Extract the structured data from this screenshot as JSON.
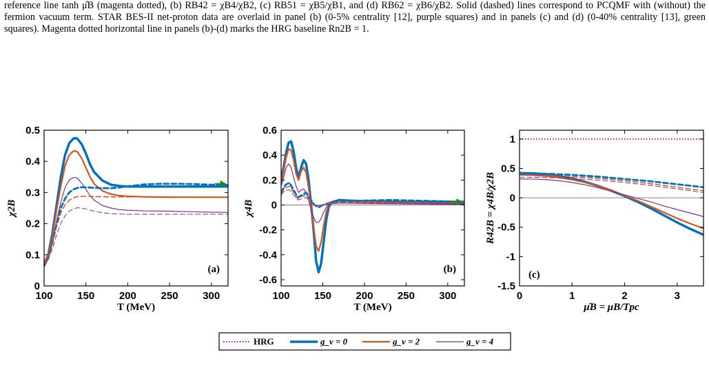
{
  "caption": {
    "text": "reference line tanh μ̂B (magenta dotted), (b) RB42 = χB4/χB2, (c) RB51 = χB5/χB1, and (d) RB62 = χB6/χB2. Solid (dashed) lines correspond to PCQMF with (without) the fermion vacuum term. STAR BES-II net-proton data are overlaid in panel (b) (0-5% centrality [12], purple squares) and in panels (c) and (d) (0-40% centrality [13], green squares). Magenta dotted horizontal line in panels (b)-(d) marks the HRG baseline Rn2B = 1."
  },
  "colors": {
    "blue": "#0072BD",
    "orange": "#D95319",
    "purple": "#7E2F8E",
    "magenta": "#CC0099",
    "green": "#1A8C1A",
    "gray": "#808080"
  },
  "legend": {
    "items": [
      {
        "label": "HRG",
        "color": "#CC0099",
        "style": "dotted",
        "width": 2
      },
      {
        "label": "g_v = 0",
        "color": "#0072BD",
        "style": "solid",
        "width": 3.5
      },
      {
        "label": "g_v = 2",
        "color": "#D95319",
        "style": "solid",
        "width": 2.2
      },
      {
        "label": "g_v = 4",
        "color": "#7E2F8E",
        "style": "solid",
        "width": 1.2
      }
    ]
  },
  "chart_data": [
    {
      "type": "line",
      "panel_label": "(a)",
      "xlabel": "T (MeV)",
      "ylabel": "χ2B",
      "xlim": [
        100,
        320
      ],
      "ylim": [
        0,
        0.5
      ],
      "xticks": [
        100,
        150,
        200,
        250,
        300
      ],
      "yticks": [
        0,
        0.1,
        0.2,
        0.3,
        0.4,
        0.5
      ],
      "ytick_labels": [
        "0",
        "0.1",
        "0.2",
        "0.3",
        "0.4",
        "0.5"
      ],
      "arrow": {
        "x_from": 304,
        "x_to": 318,
        "y": 0.328,
        "color": "green"
      },
      "series": [
        {
          "color": "blue",
          "width": 3.5,
          "dash": false,
          "x": [
            100,
            105,
            110,
            115,
            120,
            125,
            130,
            135,
            138,
            140,
            145,
            150,
            155,
            160,
            170,
            180,
            190,
            200,
            220,
            250,
            280,
            300,
            320
          ],
          "y": [
            0.07,
            0.1,
            0.17,
            0.26,
            0.35,
            0.42,
            0.458,
            0.473,
            0.475,
            0.472,
            0.455,
            0.425,
            0.39,
            0.365,
            0.338,
            0.325,
            0.321,
            0.319,
            0.319,
            0.319,
            0.319,
            0.319,
            0.319
          ]
        },
        {
          "color": "orange",
          "width": 2.2,
          "dash": false,
          "x": [
            100,
            105,
            110,
            115,
            120,
            125,
            130,
            135,
            138,
            140,
            145,
            150,
            155,
            160,
            170,
            180,
            190,
            200,
            220,
            250,
            280,
            300,
            320
          ],
          "y": [
            0.07,
            0.1,
            0.16,
            0.245,
            0.32,
            0.385,
            0.42,
            0.433,
            0.433,
            0.43,
            0.41,
            0.38,
            0.35,
            0.327,
            0.305,
            0.295,
            0.29,
            0.288,
            0.286,
            0.285,
            0.285,
            0.285,
            0.285
          ]
        },
        {
          "color": "purple",
          "width": 1.2,
          "dash": false,
          "x": [
            100,
            105,
            110,
            115,
            120,
            125,
            130,
            135,
            138,
            140,
            145,
            150,
            155,
            160,
            170,
            180,
            190,
            200,
            220,
            250,
            280,
            300,
            320
          ],
          "y": [
            0.06,
            0.09,
            0.14,
            0.21,
            0.27,
            0.315,
            0.34,
            0.348,
            0.348,
            0.345,
            0.33,
            0.31,
            0.29,
            0.275,
            0.258,
            0.25,
            0.245,
            0.243,
            0.241,
            0.24,
            0.238,
            0.237,
            0.236
          ]
        },
        {
          "color": "blue",
          "width": 2.8,
          "dash": true,
          "x": [
            100,
            105,
            110,
            115,
            120,
            125,
            130,
            135,
            140,
            145,
            150,
            155,
            160,
            170,
            180,
            190,
            200,
            220,
            240,
            260,
            280,
            300,
            320
          ],
          "y": [
            0.065,
            0.09,
            0.14,
            0.2,
            0.25,
            0.28,
            0.3,
            0.31,
            0.315,
            0.317,
            0.317,
            0.316,
            0.315,
            0.314,
            0.314,
            0.316,
            0.32,
            0.326,
            0.328,
            0.328,
            0.327,
            0.325,
            0.324
          ]
        },
        {
          "color": "orange",
          "width": 1.5,
          "dash": true,
          "x": [
            100,
            105,
            110,
            115,
            120,
            125,
            130,
            135,
            140,
            145,
            150,
            155,
            160,
            170,
            180,
            190,
            200,
            220,
            250,
            280,
            300,
            320
          ],
          "y": [
            0.065,
            0.09,
            0.135,
            0.19,
            0.235,
            0.26,
            0.275,
            0.283,
            0.287,
            0.288,
            0.288,
            0.288,
            0.287,
            0.286,
            0.286,
            0.286,
            0.286,
            0.286,
            0.286,
            0.285,
            0.285,
            0.285
          ]
        },
        {
          "color": "purple",
          "width": 1,
          "dash": true,
          "x": [
            100,
            105,
            110,
            115,
            120,
            125,
            130,
            135,
            140,
            145,
            150,
            155,
            160,
            170,
            180,
            190,
            200,
            220,
            250,
            280,
            300,
            320
          ],
          "y": [
            0.06,
            0.085,
            0.12,
            0.165,
            0.2,
            0.225,
            0.24,
            0.248,
            0.251,
            0.25,
            0.247,
            0.243,
            0.24,
            0.235,
            0.232,
            0.231,
            0.23,
            0.23,
            0.23,
            0.23,
            0.23,
            0.23
          ]
        }
      ]
    },
    {
      "type": "line",
      "panel_label": "(b)",
      "xlabel": "T (MeV)",
      "ylabel": "χ4B",
      "xlim": [
        100,
        320
      ],
      "ylim": [
        -0.65,
        0.6
      ],
      "xticks": [
        100,
        150,
        200,
        250,
        300
      ],
      "yticks": [
        -0.6,
        -0.4,
        -0.2,
        0,
        0.2,
        0.4,
        0.6
      ],
      "ytick_labels": [
        "-0.6",
        "-0.4",
        "-0.2",
        "0",
        "0.2",
        "0.4",
        "0.6"
      ],
      "zero_line": true,
      "arrow": {
        "x_from": 302,
        "x_to": 318,
        "y": 0.025,
        "color": "green"
      },
      "series": [
        {
          "color": "blue",
          "width": 3.5,
          "dash": false,
          "x": [
            100,
            103,
            106,
            109,
            112,
            115,
            118,
            121,
            124,
            127,
            130,
            133,
            136,
            139,
            142,
            145,
            148,
            151,
            154,
            157,
            160,
            170,
            180,
            200,
            230,
            260,
            290,
            320
          ],
          "y": [
            0.2,
            0.3,
            0.42,
            0.5,
            0.51,
            0.43,
            0.3,
            0.22,
            0.3,
            0.36,
            0.33,
            0.2,
            0.0,
            -0.2,
            -0.45,
            -0.54,
            -0.47,
            -0.3,
            -0.13,
            -0.02,
            0.02,
            0.04,
            0.035,
            0.03,
            0.025,
            0.025,
            0.025,
            0.025
          ]
        },
        {
          "color": "orange",
          "width": 2.2,
          "dash": false,
          "x": [
            100,
            103,
            106,
            109,
            112,
            115,
            118,
            121,
            124,
            127,
            130,
            133,
            136,
            139,
            142,
            145,
            148,
            151,
            154,
            157,
            160,
            170,
            180,
            200,
            230,
            260,
            290,
            320
          ],
          "y": [
            0.17,
            0.27,
            0.38,
            0.45,
            0.44,
            0.36,
            0.25,
            0.2,
            0.27,
            0.3,
            0.26,
            0.14,
            -0.02,
            -0.18,
            -0.33,
            -0.37,
            -0.3,
            -0.17,
            -0.06,
            0.0,
            0.02,
            0.03,
            0.03,
            0.025,
            0.02,
            0.015,
            0.01,
            0.01
          ]
        },
        {
          "color": "purple",
          "width": 1.2,
          "dash": false,
          "x": [
            100,
            103,
            106,
            109,
            112,
            115,
            118,
            121,
            124,
            127,
            130,
            133,
            136,
            139,
            142,
            145,
            148,
            151,
            154,
            157,
            160,
            170,
            180,
            200,
            230,
            260,
            290,
            320
          ],
          "y": [
            0.15,
            0.22,
            0.3,
            0.33,
            0.3,
            0.22,
            0.15,
            0.1,
            0.12,
            0.13,
            0.1,
            0.04,
            -0.04,
            -0.1,
            -0.14,
            -0.14,
            -0.11,
            -0.06,
            -0.02,
            0.0,
            0.01,
            0.015,
            0.015,
            0.012,
            0.01,
            0.008,
            0.006,
            0.005
          ]
        },
        {
          "color": "blue",
          "width": 2.8,
          "dash": true,
          "x": [
            100,
            105,
            110,
            115,
            120,
            125,
            130,
            135,
            140,
            145,
            150,
            160,
            170,
            180,
            200,
            230,
            260,
            290,
            320
          ],
          "y": [
            0.1,
            0.16,
            0.18,
            0.12,
            0.06,
            0.08,
            0.1,
            0.05,
            0.0,
            -0.02,
            0.0,
            0.02,
            0.03,
            0.03,
            0.035,
            0.04,
            0.035,
            0.03,
            0.025
          ]
        },
        {
          "color": "orange",
          "width": 1.5,
          "dash": true,
          "x": [
            100,
            105,
            110,
            115,
            120,
            125,
            130,
            135,
            140,
            145,
            150,
            160,
            170,
            180,
            200,
            230,
            260,
            290,
            320
          ],
          "y": [
            0.09,
            0.14,
            0.15,
            0.1,
            0.05,
            0.07,
            0.08,
            0.04,
            0.0,
            -0.01,
            0.0,
            0.015,
            0.02,
            0.02,
            0.02,
            0.02,
            0.02,
            0.015,
            0.015
          ]
        },
        {
          "color": "purple",
          "width": 1,
          "dash": true,
          "x": [
            100,
            105,
            110,
            115,
            120,
            125,
            130,
            135,
            140,
            145,
            150,
            160,
            170,
            180,
            200,
            230,
            260,
            290,
            320
          ],
          "y": [
            0.08,
            0.12,
            0.12,
            0.08,
            0.04,
            0.05,
            0.06,
            0.03,
            0.0,
            -0.01,
            0.0,
            0.01,
            0.015,
            0.015,
            0.015,
            0.015,
            0.012,
            0.01,
            0.01
          ]
        }
      ]
    },
    {
      "type": "line",
      "panel_label": "(c)",
      "xlabel": "μ̂B = μB/Tpc",
      "ylabel": "R42B = χ4B/χ2B",
      "xlim": [
        0,
        3.5
      ],
      "ylim": [
        -1.5,
        1.15
      ],
      "xticks": [
        0,
        1,
        2,
        3
      ],
      "yticks": [
        -1.5,
        -1,
        -0.5,
        0,
        0.5,
        1
      ],
      "ytick_labels": [
        "-1.5",
        "-1",
        "-0.5",
        "0",
        "0.5",
        "1"
      ],
      "zero_line": true,
      "hline": {
        "y": 1,
        "color": "magenta"
      },
      "series": [
        {
          "color": "blue",
          "width": 3.5,
          "dash": false,
          "x": [
            0,
            0.25,
            0.5,
            0.75,
            1.0,
            1.25,
            1.5,
            1.75,
            2.0,
            2.25,
            2.5,
            2.75,
            3.0,
            3.25,
            3.5
          ],
          "y": [
            0.42,
            0.415,
            0.4,
            0.37,
            0.33,
            0.27,
            0.2,
            0.12,
            0.03,
            -0.07,
            -0.18,
            -0.3,
            -0.42,
            -0.53,
            -0.63
          ]
        },
        {
          "color": "orange",
          "width": 2.2,
          "dash": false,
          "x": [
            0,
            0.25,
            0.5,
            0.75,
            1.0,
            1.25,
            1.5,
            1.75,
            2.0,
            2.25,
            2.5,
            2.75,
            3.0,
            3.25,
            3.5
          ],
          "y": [
            0.39,
            0.385,
            0.37,
            0.345,
            0.31,
            0.26,
            0.2,
            0.12,
            0.04,
            -0.05,
            -0.15,
            -0.25,
            -0.35,
            -0.44,
            -0.52
          ]
        },
        {
          "color": "purple",
          "width": 1.2,
          "dash": false,
          "x": [
            0,
            0.25,
            0.5,
            0.75,
            1.0,
            1.25,
            1.5,
            1.75,
            2.0,
            2.25,
            2.5,
            2.75,
            3.0,
            3.25,
            3.5
          ],
          "y": [
            0.32,
            0.318,
            0.31,
            0.29,
            0.26,
            0.22,
            0.17,
            0.11,
            0.05,
            -0.01,
            -0.07,
            -0.14,
            -0.2,
            -0.26,
            -0.32
          ]
        },
        {
          "color": "blue",
          "width": 2.8,
          "dash": true,
          "x": [
            0,
            0.5,
            1.0,
            1.5,
            2.0,
            2.5,
            3.0,
            3.5
          ],
          "y": [
            0.42,
            0.41,
            0.39,
            0.36,
            0.32,
            0.28,
            0.23,
            0.18
          ]
        },
        {
          "color": "orange",
          "width": 1.5,
          "dash": true,
          "x": [
            0,
            0.5,
            1.0,
            1.5,
            2.0,
            2.5,
            3.0,
            3.5
          ],
          "y": [
            0.39,
            0.38,
            0.36,
            0.33,
            0.29,
            0.24,
            0.18,
            0.12
          ]
        },
        {
          "color": "purple",
          "width": 1,
          "dash": true,
          "x": [
            0,
            0.5,
            1.0,
            1.5,
            2.0,
            2.5,
            3.0,
            3.5
          ],
          "y": [
            0.35,
            0.345,
            0.33,
            0.3,
            0.26,
            0.21,
            0.15,
            0.09
          ]
        }
      ]
    }
  ]
}
